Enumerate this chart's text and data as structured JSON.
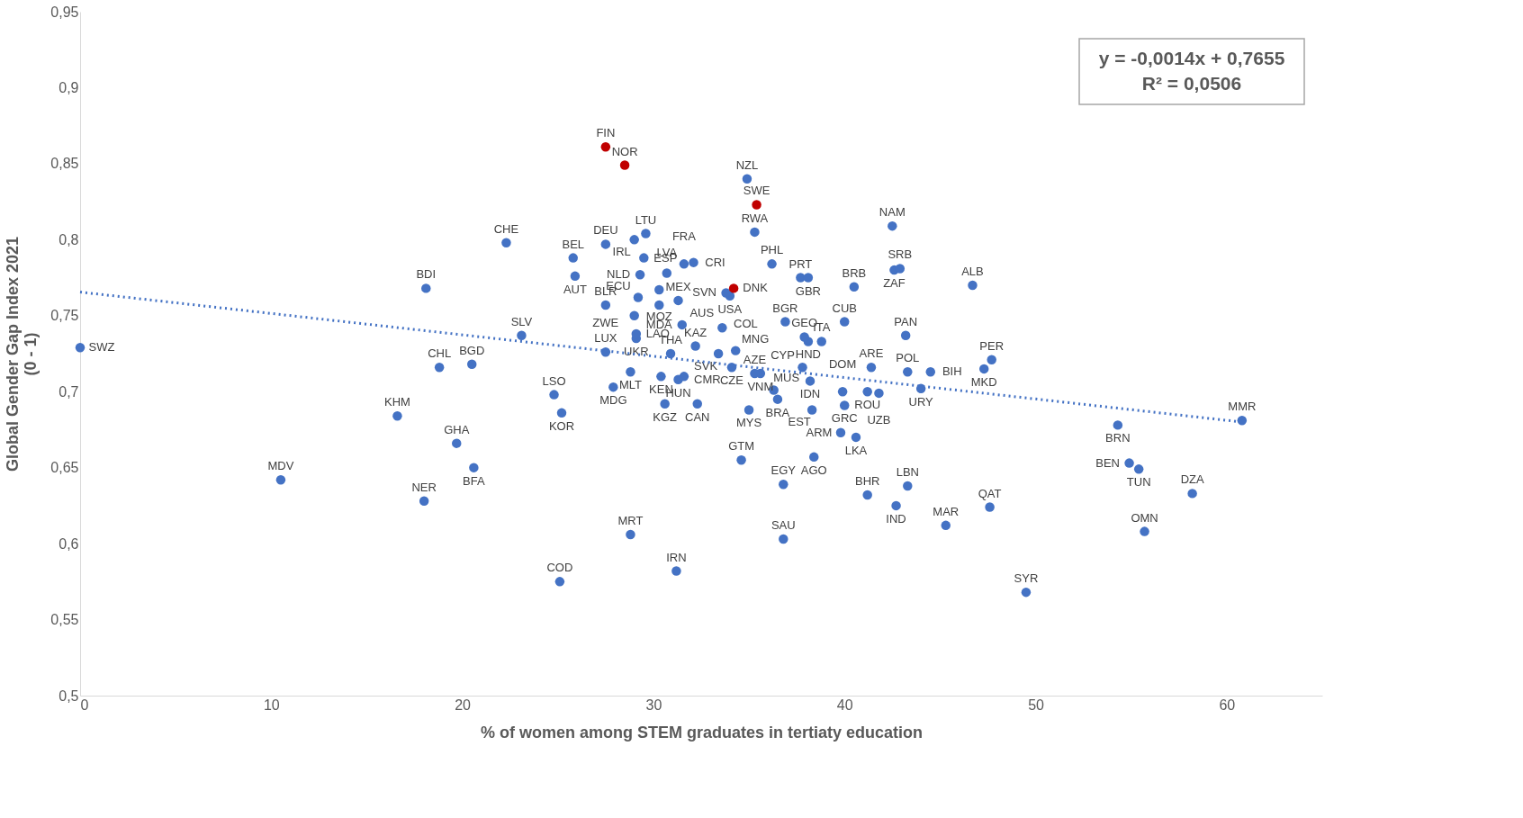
{
  "chart_data": {
    "type": "scatter",
    "xlabel": "% of women among STEM graduates in tertiaty education",
    "ylabel": "Global Gender Gap Index 2021\n(0 - 1)",
    "xlim": [
      0,
      65
    ],
    "xticks": [
      0,
      10,
      20,
      30,
      40,
      50,
      60
    ],
    "ylim": [
      0.5,
      0.95
    ],
    "yticks": [
      {
        "value": 0.5,
        "label": "0,5"
      },
      {
        "value": 0.55,
        "label": "0,55"
      },
      {
        "value": 0.6,
        "label": "0,6"
      },
      {
        "value": 0.65,
        "label": "0,65"
      },
      {
        "value": 0.7,
        "label": "0,7"
      },
      {
        "value": 0.75,
        "label": "0,75"
      },
      {
        "value": 0.8,
        "label": "0,8"
      },
      {
        "value": 0.85,
        "label": "0,85"
      },
      {
        "value": 0.9,
        "label": "0,9"
      },
      {
        "value": 0.95,
        "label": "0,95"
      }
    ],
    "grid": false,
    "marker": "circle",
    "annotations": [
      "y = -0,0014x + 0,7655\nR² = 0,0506"
    ],
    "series": [
      {
        "color": "#4472c4",
        "x": [
          0,
          10.5,
          16.6,
          18.0,
          18.1,
          18.8,
          19.7,
          20.6,
          20.5,
          22.3,
          23.1,
          24.8,
          25.2,
          25.1,
          25.8,
          25.9,
          27.5,
          27.5,
          29.0,
          29.6,
          29.5,
          29.3,
          30.3,
          31.3,
          30.7,
          31.6,
          32.1,
          34.9,
          34.0,
          35.3,
          36.2,
          37.7,
          38.1,
          36.9,
          40.5,
          40.0,
          42.5,
          42.6,
          42.9,
          46.7,
          43.2,
          47.7,
          47.3,
          43.3,
          44.5,
          44.0,
          41.4,
          41.2,
          41.8,
          39.9,
          40.0,
          39.8,
          40.6,
          38.4,
          36.8,
          36.8,
          41.2,
          42.7,
          43.3,
          45.3,
          47.6,
          49.5,
          54.3,
          54.9,
          55.4,
          55.7,
          58.2,
          60.8,
          38.1,
          38.8,
          37.8,
          35.6,
          36.3,
          38.2,
          35.3,
          36.5,
          35.0,
          34.6,
          34.3,
          33.4,
          34.1,
          33.6,
          33.8,
          31.5,
          30.3,
          30.9,
          32.2,
          29.1,
          27.5,
          28.8,
          29.0,
          29.2,
          29.1,
          30.4,
          31.6,
          31.3,
          30.6,
          32.3,
          27.9,
          28.8,
          31.2,
          38.3,
          37.9
        ],
        "values": [
          0.729,
          0.642,
          0.684,
          0.628,
          0.768,
          0.716,
          0.666,
          0.65,
          0.718,
          0.798,
          0.737,
          0.698,
          0.686,
          0.575,
          0.788,
          0.776,
          0.757,
          0.797,
          0.8,
          0.804,
          0.788,
          0.777,
          0.767,
          0.76,
          0.778,
          0.784,
          0.785,
          0.84,
          0.763,
          0.805,
          0.784,
          0.775,
          0.775,
          0.746,
          0.769,
          0.746,
          0.809,
          0.78,
          0.781,
          0.77,
          0.737,
          0.721,
          0.715,
          0.713,
          0.713,
          0.702,
          0.716,
          0.7,
          0.699,
          0.7,
          0.691,
          0.673,
          0.67,
          0.657,
          0.639,
          0.603,
          0.632,
          0.625,
          0.638,
          0.612,
          0.624,
          0.568,
          0.678,
          0.653,
          0.649,
          0.608,
          0.633,
          0.681,
          0.733,
          0.733,
          0.716,
          0.712,
          0.701,
          0.707,
          0.712,
          0.695,
          0.688,
          0.655,
          0.727,
          0.725,
          0.716,
          0.742,
          0.765,
          0.744,
          0.757,
          0.725,
          0.73,
          0.735,
          0.726,
          0.713,
          0.75,
          0.762,
          0.738,
          0.71,
          0.71,
          0.708,
          0.692,
          0.692,
          0.703,
          0.606,
          0.582,
          0.688,
          0.736
        ],
        "value_labels": [
          "SWZ",
          "MDV",
          "KHM",
          "NER",
          "BDI",
          "CHL",
          "GHA",
          "BFA",
          "BGD",
          "CHE",
          "SLV",
          "LSO",
          "KOR",
          "COD",
          "BEL",
          "AUT",
          "BLR",
          "DEU",
          "IRL",
          "LTU",
          "ESP",
          "NLD",
          "MOZ",
          "MEX",
          "LVA",
          "FRA",
          "CRI",
          "NZL",
          "USA",
          "RWA",
          "PHL",
          "PRT",
          "GBR",
          "BGR",
          "BRB",
          "CUB",
          "NAM",
          "ZAF",
          "SRB",
          "ALB",
          "PAN",
          "PER",
          "MKD",
          "POL",
          "BIH",
          "URY",
          "ARE",
          "ROU",
          "UZB",
          "DOM",
          "GRC",
          "ARM",
          "LKA",
          "AGO",
          "EGY",
          "SAU",
          "BHR",
          "IND",
          "LBN",
          "MAR",
          "QAT",
          "SYR",
          "BRN",
          "BEN",
          "TUN",
          "OMN",
          "DZA",
          "MMR",
          "HND",
          "ITA",
          "CYP",
          "VNM",
          "MUS",
          "IDN",
          "AZE",
          "BRA",
          "MYS",
          "GTM",
          "MNG",
          "SVK",
          "CZE",
          "COL",
          "SVN",
          "AUS",
          "MDA",
          "THA",
          "KAZ",
          "UKR",
          "LUX",
          "MLT",
          "ZWE",
          "ECU",
          "LAO",
          "KEN",
          "CMR",
          "HUN",
          "KGZ",
          "CAN",
          "MDG",
          "MRT",
          "IRN",
          "EST",
          "GEO"
        ]
      },
      {
        "color": "#c00000",
        "x": [
          27.5,
          28.5,
          35.4,
          34.2
        ],
        "values": [
          0.861,
          0.849,
          0.823,
          0.768
        ],
        "value_labels": [
          "FIN",
          "NOR",
          "SWE",
          "DNK"
        ]
      },
      {
        "type": "line",
        "marker": "none",
        "color": "#4472c4",
        "line_style": "dotted",
        "x": [
          0,
          60.8
        ],
        "values": [
          0.7655,
          0.68
        ]
      }
    ]
  }
}
